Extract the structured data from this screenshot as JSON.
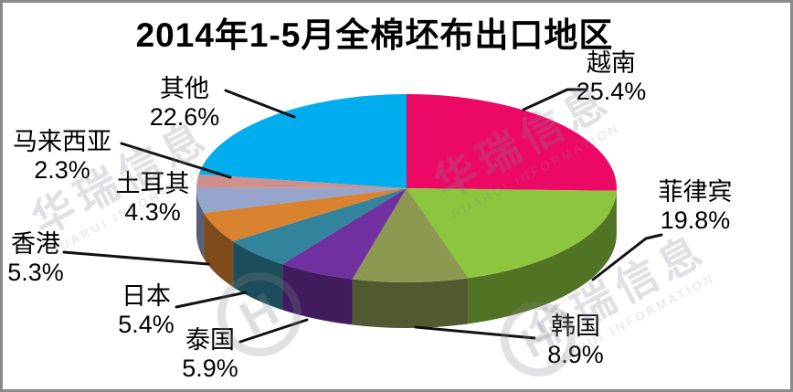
{
  "title": "2014年1-5月全棉坯布出口地区",
  "watermark": {
    "cn": "华瑞信息",
    "en": "HUARUI INFORMATION",
    "logo": "H"
  },
  "chart_data": {
    "type": "pie",
    "style": "3d",
    "title": "2014年1-5月全棉坯布出口地区",
    "start_angle_deg": 0,
    "direction": "clockwise",
    "legend": "none",
    "slices": [
      {
        "label": "越南",
        "value": 25.4,
        "display": "25.4%",
        "color": "#EC0966"
      },
      {
        "label": "菲律宾",
        "value": 19.8,
        "display": "19.8%",
        "color": "#8CC63E"
      },
      {
        "label": "韩国",
        "value": 8.9,
        "display": "8.9%",
        "color": "#8D9851"
      },
      {
        "label": "泰国",
        "value": 5.9,
        "display": "5.9%",
        "color": "#7030A0"
      },
      {
        "label": "日本",
        "value": 5.4,
        "display": "5.4%",
        "color": "#31849B"
      },
      {
        "label": "香港",
        "value": 5.3,
        "display": "5.3%",
        "color": "#D9822F"
      },
      {
        "label": "土耳其",
        "value": 4.3,
        "display": "4.3%",
        "color": "#95A5CC"
      },
      {
        "label": "马来西亚",
        "value": 2.3,
        "display": "2.3%",
        "color": "#CD908C"
      },
      {
        "label": "其他",
        "value": 22.6,
        "display": "22.6%",
        "color": "#00AEEF"
      }
    ]
  }
}
